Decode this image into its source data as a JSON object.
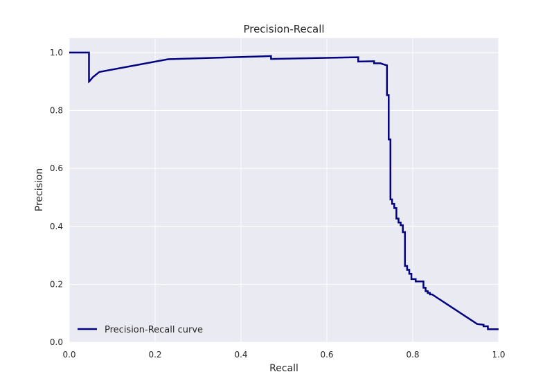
{
  "chart_data": {
    "type": "line",
    "title": "Precision-Recall",
    "xlabel": "Recall",
    "ylabel": "Precision",
    "xlim": [
      0.0,
      1.0
    ],
    "ylim": [
      0.0,
      1.05
    ],
    "xticks": [
      "0.0",
      "0.2",
      "0.4",
      "0.6",
      "0.8",
      "1.0"
    ],
    "yticks": [
      "0.0",
      "0.2",
      "0.4",
      "0.6",
      "0.8",
      "1.0"
    ],
    "grid": true,
    "legend_position": "lower left",
    "background_color": "#EAEAF2",
    "grid_color": "#FFFFFF",
    "series": [
      {
        "name": "Precision-Recall curve",
        "color": "#000080",
        "x": [
          0.0,
          0.046,
          0.046,
          0.048,
          0.055,
          0.07,
          0.23,
          0.47,
          0.47,
          0.673,
          0.673,
          0.71,
          0.71,
          0.725,
          0.735,
          0.74,
          0.74,
          0.744,
          0.744,
          0.748,
          0.748,
          0.752,
          0.752,
          0.757,
          0.757,
          0.762,
          0.762,
          0.767,
          0.767,
          0.772,
          0.772,
          0.777,
          0.777,
          0.782,
          0.782,
          0.787,
          0.787,
          0.792,
          0.792,
          0.797,
          0.797,
          0.802,
          0.802,
          0.807,
          0.807,
          0.825,
          0.825,
          0.83,
          0.83,
          0.835,
          0.835,
          0.84,
          0.84,
          0.845,
          0.95,
          0.965,
          0.965,
          0.975,
          0.975,
          0.985,
          0.985,
          1.0
        ],
        "y": [
          1.0,
          1.0,
          0.9,
          0.903,
          0.915,
          0.933,
          0.977,
          0.988,
          0.978,
          0.984,
          0.969,
          0.97,
          0.963,
          0.963,
          0.958,
          0.956,
          0.853,
          0.853,
          0.7,
          0.7,
          0.493,
          0.493,
          0.478,
          0.478,
          0.463,
          0.463,
          0.427,
          0.427,
          0.413,
          0.413,
          0.404,
          0.404,
          0.38,
          0.38,
          0.263,
          0.263,
          0.25,
          0.25,
          0.236,
          0.236,
          0.218,
          0.218,
          0.218,
          0.218,
          0.21,
          0.21,
          0.188,
          0.188,
          0.176,
          0.176,
          0.17,
          0.17,
          0.165,
          0.165,
          0.063,
          0.06,
          0.055,
          0.055,
          0.045,
          0.045,
          0.045,
          0.045
        ]
      }
    ]
  }
}
